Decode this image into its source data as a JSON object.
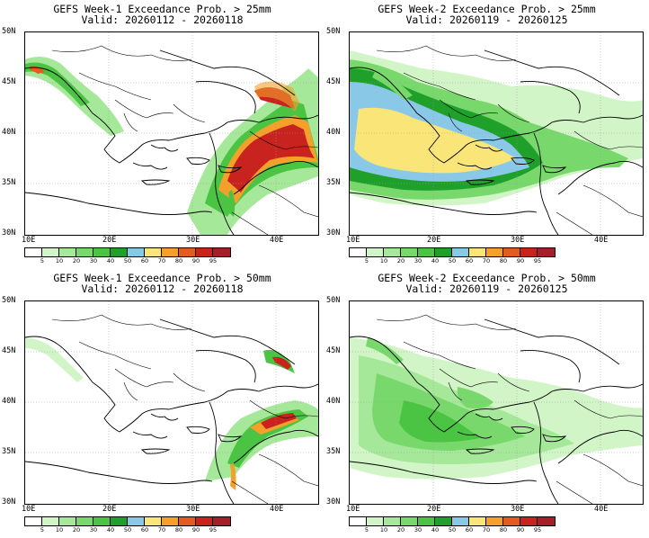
{
  "colorbar": {
    "colors": [
      "#ffffff",
      "#d2f5c8",
      "#a6e89a",
      "#78d86c",
      "#4bc443",
      "#1fa02a",
      "#8ac8e8",
      "#fae678",
      "#f5a02a",
      "#e55a1e",
      "#c8231e",
      "#a51e28"
    ],
    "labels": [
      "5",
      "10",
      "20",
      "30",
      "40",
      "50",
      "60",
      "70",
      "80",
      "90",
      "95"
    ]
  },
  "axes": {
    "y_labels": [
      "50N",
      "45N",
      "40N",
      "35N",
      "30N"
    ],
    "x_labels": [
      "10E",
      "20E",
      "30E",
      "40E"
    ]
  },
  "panels": [
    {
      "title": "GEFS Week-1 Exceedance Prob. > 25mm",
      "valid": "Valid: 20260112 - 20260118"
    },
    {
      "title": "GEFS Week-2 Exceedance Prob. > 25mm",
      "valid": "Valid: 20260119 - 20260125"
    },
    {
      "title": "GEFS Week-1 Exceedance Prob. > 50mm",
      "valid": "Valid: 20260112 - 20260118"
    },
    {
      "title": "GEFS Week-2 Exceedance Prob. > 50mm",
      "valid": "Valid: 20260119 - 20260125"
    }
  ]
}
